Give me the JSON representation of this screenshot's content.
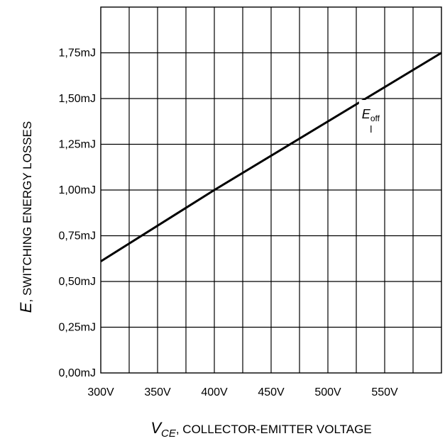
{
  "chart_data": {
    "type": "line",
    "title": "",
    "xlabel": {
      "symbol": "V",
      "subscript": "CE",
      "text": ", COLLECTOR-EMITTER VOLTAGE"
    },
    "ylabel": {
      "symbol": "E",
      "text": ", SWITCHING ENERGY LOSSES"
    },
    "x_tick_labels": [
      "300V",
      "350V",
      "400V",
      "450V",
      "500V",
      "550V"
    ],
    "x_tick_values": [
      300,
      350,
      400,
      450,
      500,
      550
    ],
    "y_tick_labels": [
      "0,00mJ",
      "0,25mJ",
      "0,50mJ",
      "0,75mJ",
      "1,00mJ",
      "1,25mJ",
      "1,50mJ",
      "1,75mJ"
    ],
    "y_tick_values": [
      0,
      0.25,
      0.5,
      0.75,
      1.0,
      1.25,
      1.5,
      1.75
    ],
    "xlim": [
      300,
      600
    ],
    "ylim": [
      0,
      2.0
    ],
    "grid": true,
    "x_grid_step": 25,
    "y_grid_step": 0.25,
    "series": [
      {
        "name": "E_off",
        "label": {
          "symbol": "E",
          "subscript": "off"
        },
        "x": [
          300,
          400,
          600
        ],
        "y": [
          0.61,
          1.0,
          1.75
        ],
        "color": "#000000"
      }
    ],
    "annotation": {
      "series": "E_off",
      "x": 528,
      "y": 1.5
    }
  }
}
